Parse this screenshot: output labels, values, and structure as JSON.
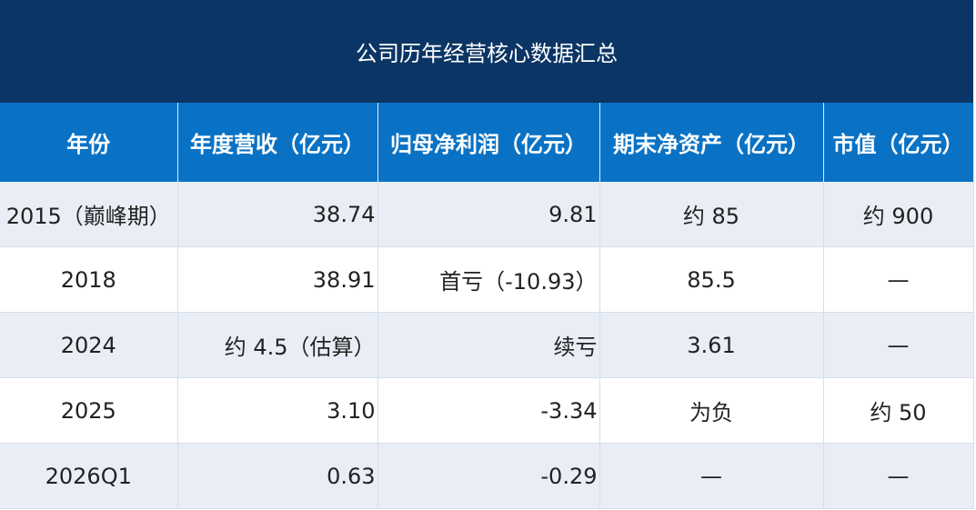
{
  "table": {
    "title": "公司历年经营核心数据汇总",
    "headers": [
      "年份",
      "年度营收（亿元）",
      "归母净利润（亿元）",
      "期末净资产（亿元）",
      "市值（亿元）"
    ],
    "rows": [
      [
        "2015（巅峰期）",
        "38.74",
        "9.81",
        "约 85",
        "约 900"
      ],
      [
        "2018",
        "38.91",
        "首亏（-10.93）",
        "85.5",
        "—"
      ],
      [
        "2024",
        "约 4.5（估算）",
        "续亏",
        "3.61",
        "—"
      ],
      [
        "2025",
        "3.10",
        "-3.34",
        "为负",
        "约 50"
      ],
      [
        "2026Q1",
        "0.63",
        "-0.29",
        "—",
        "—"
      ]
    ]
  }
}
